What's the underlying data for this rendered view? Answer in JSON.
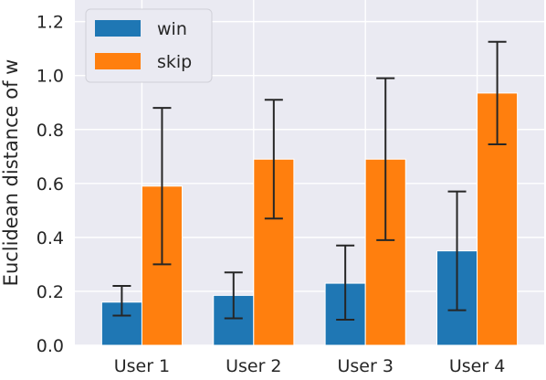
{
  "chart_data": {
    "type": "bar",
    "categories": [
      "User 1",
      "User 2",
      "User 3",
      "User 4"
    ],
    "series": [
      {
        "name": "win",
        "color": "#1f77b4",
        "values": [
          0.16,
          0.185,
          0.23,
          0.35
        ],
        "err_low": [
          0.11,
          0.1,
          0.095,
          0.13
        ],
        "err_high": [
          0.22,
          0.27,
          0.37,
          0.57
        ]
      },
      {
        "name": "skip",
        "color": "#ff7f0e",
        "values": [
          0.59,
          0.69,
          0.69,
          0.935
        ],
        "err_low": [
          0.3,
          0.47,
          0.39,
          0.745
        ],
        "err_high": [
          0.88,
          0.91,
          0.99,
          1.125
        ]
      }
    ],
    "ylabel": "Euclidean distance of w",
    "xlabel": "",
    "ylim": [
      0,
      1.28
    ],
    "yticks": [
      "0.0",
      "0.2",
      "0.4",
      "0.6",
      "0.8",
      "1.0",
      "1.2"
    ],
    "grid": true,
    "legend_position": "top-left",
    "background": "#eaeaf2"
  }
}
